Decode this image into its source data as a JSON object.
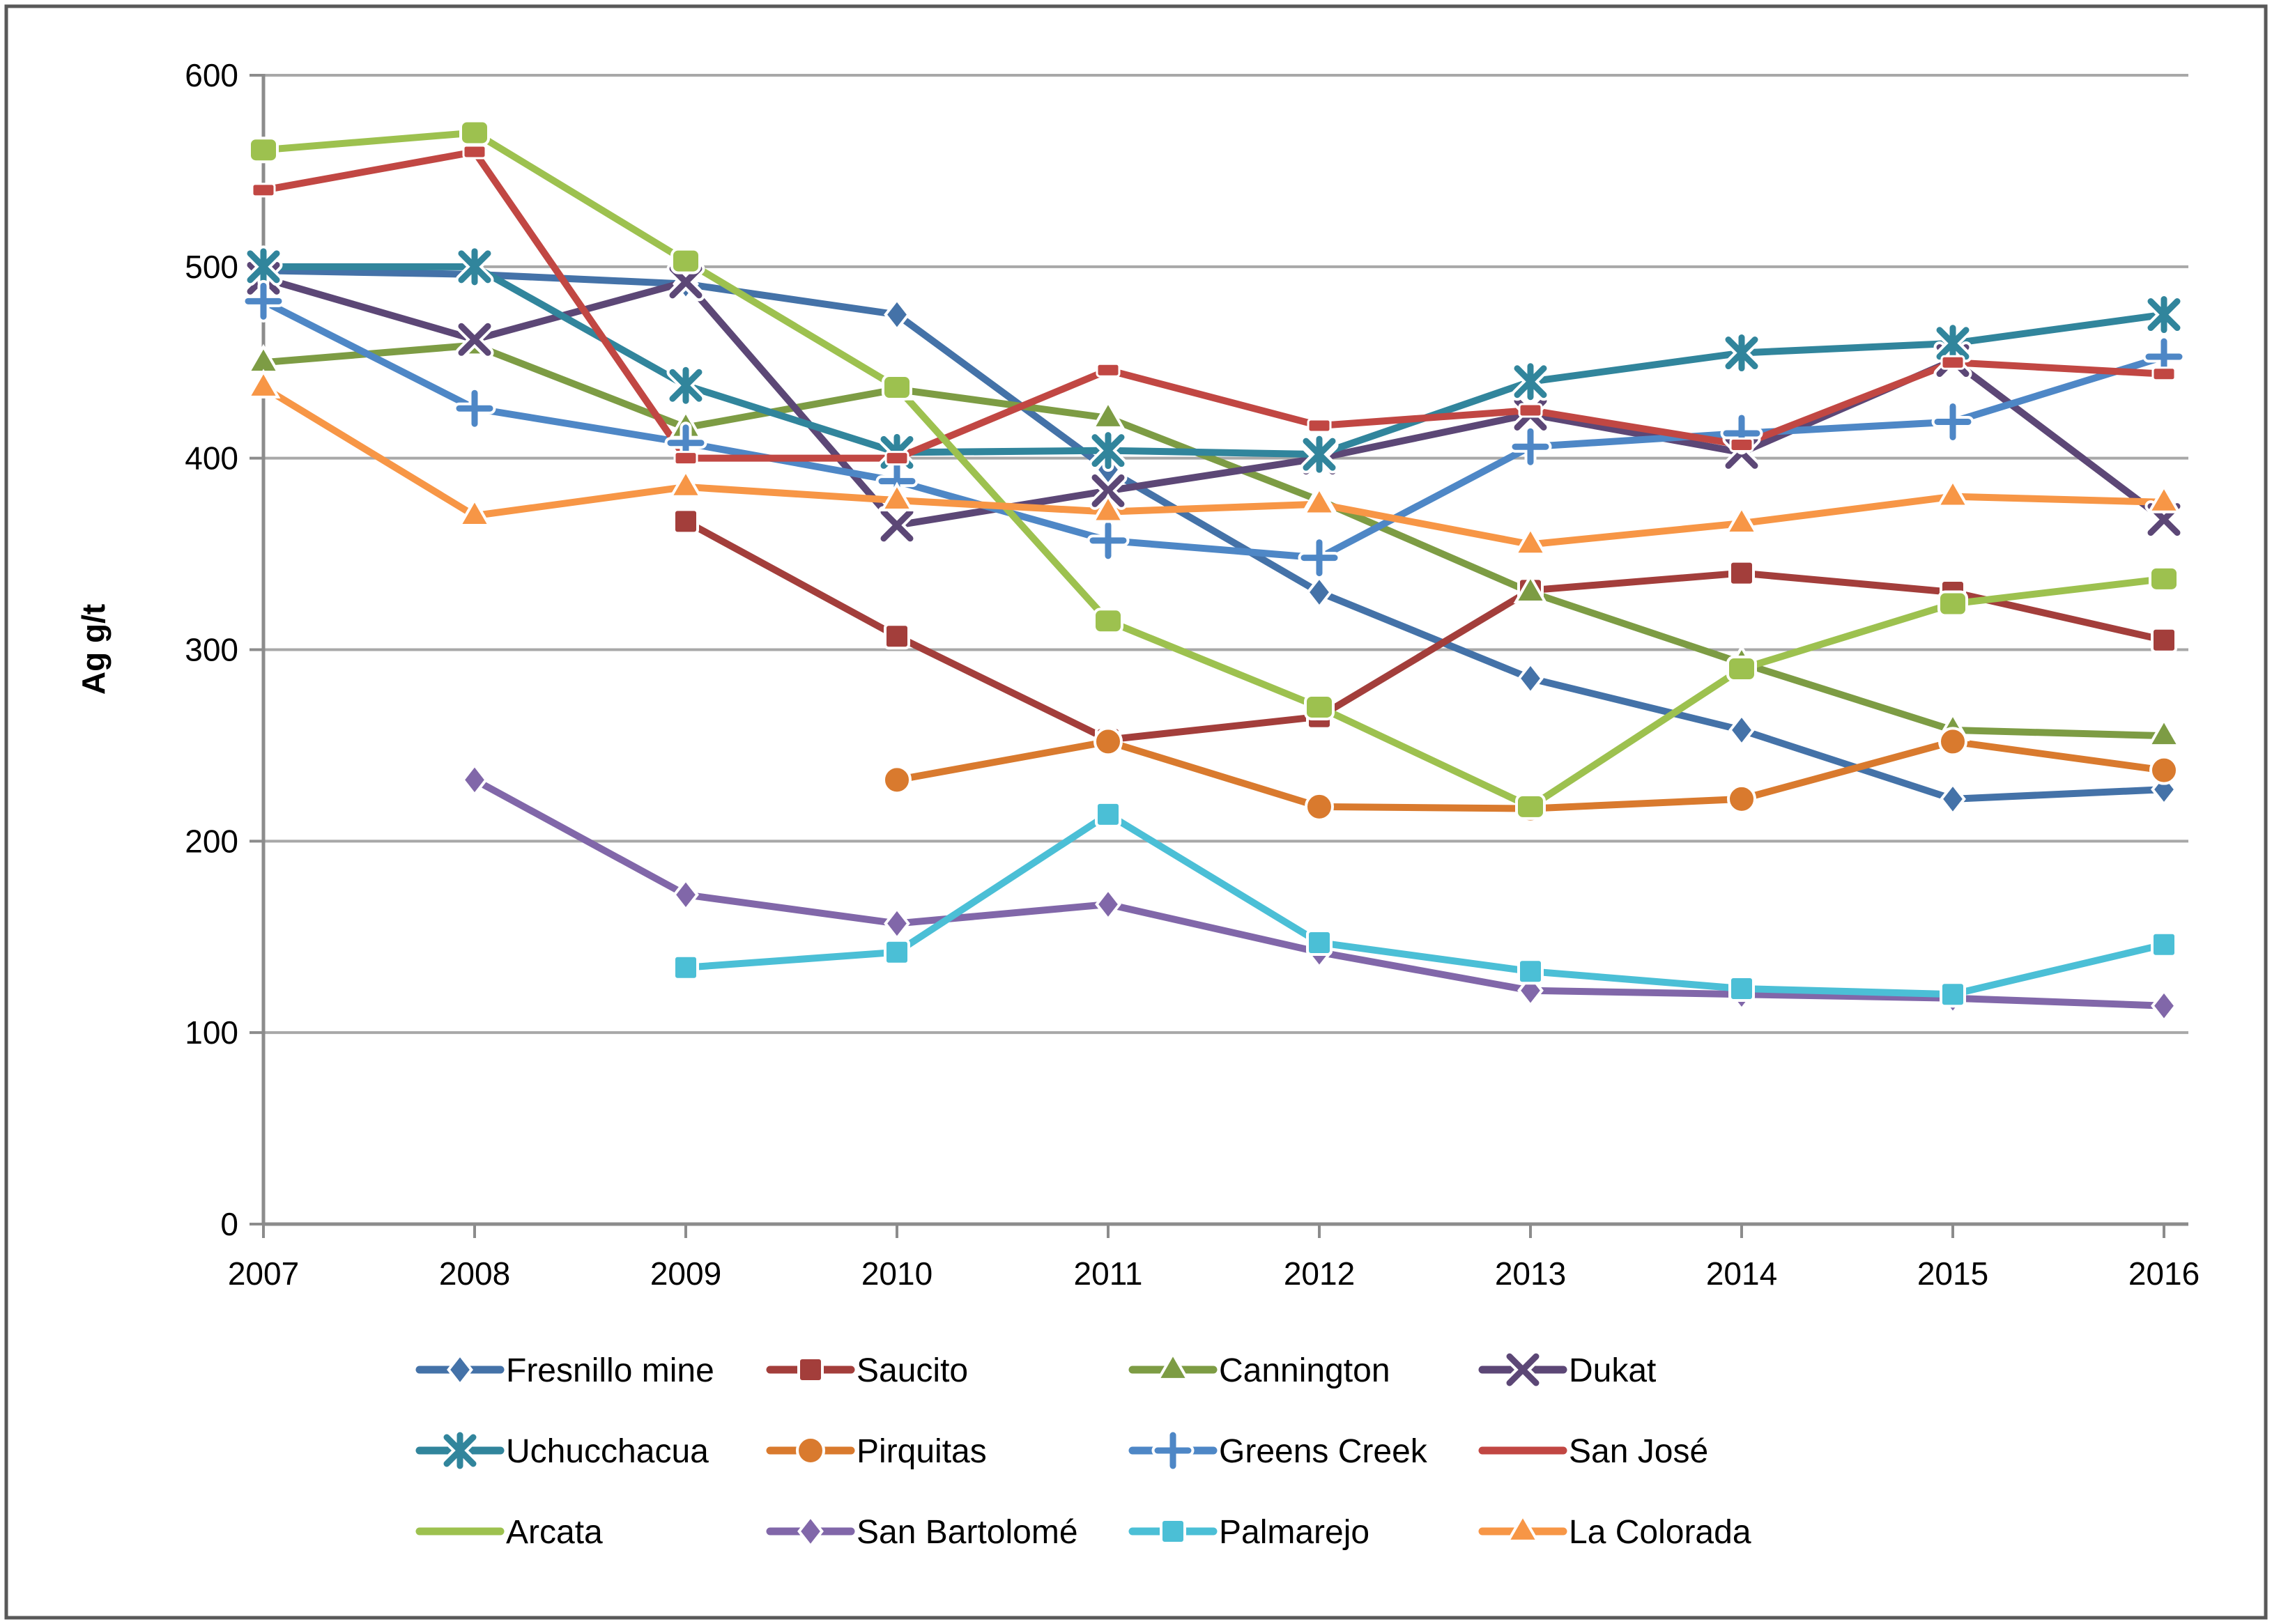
{
  "chart_data": {
    "type": "line",
    "title": "",
    "xlabel": "",
    "ylabel": "Ag g/t",
    "ylim": [
      0,
      600
    ],
    "ytick_step": 100,
    "grid": true,
    "legend_position": "bottom",
    "categories": [
      "2007",
      "2008",
      "2009",
      "2010",
      "2011",
      "2012",
      "2013",
      "2014",
      "2015",
      "2016"
    ],
    "yticks": [
      "0",
      "100",
      "200",
      "300",
      "400",
      "500",
      "600"
    ],
    "series": [
      {
        "name": "Fresnillo mine",
        "color": "#4472A8",
        "marker": "diamond",
        "legend_marker": true,
        "values": [
          498,
          496,
          491,
          475,
          394,
          330,
          285,
          258,
          222,
          227
        ]
      },
      {
        "name": "Saucito",
        "color": "#A33E3B",
        "marker": "square",
        "legend_marker": true,
        "values": [
          null,
          null,
          367,
          307,
          253,
          265,
          331,
          340,
          330,
          305
        ]
      },
      {
        "name": "Cannington",
        "color": "#7D9C44",
        "marker": "triangle",
        "legend_marker": true,
        "values": [
          450,
          459,
          416,
          436,
          421,
          378,
          330,
          293,
          258,
          255
        ]
      },
      {
        "name": "Dukat",
        "color": "#5C4776",
        "marker": "x",
        "legend_marker": true,
        "values": [
          494,
          462,
          492,
          365,
          383,
          400,
          423,
          403,
          451,
          368
        ]
      },
      {
        "name": "Uchucchacua",
        "color": "#31859C",
        "marker": "asterisk",
        "legend_marker": true,
        "values": [
          500,
          500,
          438,
          403,
          404,
          402,
          440,
          455,
          460,
          475
        ]
      },
      {
        "name": "Pirquitas",
        "color": "#D97A2E",
        "marker": "circle",
        "legend_marker": true,
        "values": [
          null,
          null,
          null,
          232,
          252,
          218,
          217,
          222,
          252,
          237
        ]
      },
      {
        "name": "Greens Creek",
        "color": "#4E87C6",
        "marker": "plus",
        "legend_marker": true,
        "values": [
          482,
          426,
          408,
          388,
          357,
          348,
          406,
          413,
          419,
          453
        ]
      },
      {
        "name": "San José",
        "color": "#C14743",
        "marker": "dash",
        "legend_marker": false,
        "values": [
          540,
          560,
          400,
          400,
          446,
          417,
          425,
          407,
          450,
          444
        ]
      },
      {
        "name": "Arcata",
        "color": "#9DC14F",
        "marker": "roundsquare",
        "legend_marker": false,
        "values": [
          561,
          570,
          503,
          437,
          315,
          270,
          218,
          290,
          324,
          337
        ]
      },
      {
        "name": "San Bartolomé",
        "color": "#8167A9",
        "marker": "diamond",
        "legend_marker": true,
        "values": [
          null,
          232,
          172,
          157,
          167,
          142,
          122,
          120,
          118,
          114
        ]
      },
      {
        "name": "Palmarejo",
        "color": "#4BBFD6",
        "marker": "square",
        "legend_marker": true,
        "values": [
          null,
          null,
          134,
          142,
          214,
          147,
          132,
          123,
          120,
          146
        ]
      },
      {
        "name": "La Colorada",
        "color": "#F79646",
        "marker": "triangle",
        "legend_marker": true,
        "values": [
          437,
          370,
          385,
          378,
          372,
          376,
          355,
          366,
          380,
          377
        ]
      }
    ]
  },
  "style": {
    "grid_color": "#A8A8A8",
    "axis_color": "#8C8C8C",
    "border_color": "#595959",
    "background": "#FFFFFF"
  }
}
